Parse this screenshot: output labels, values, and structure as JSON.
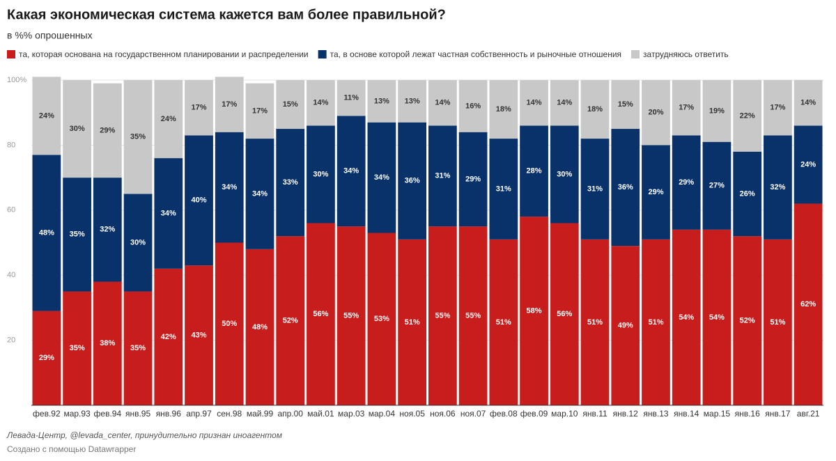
{
  "chart_data": {
    "type": "stacked-bar",
    "title": "Какая экономическая система кажется вам более правильной?",
    "subtitle": "в %% опрошенных",
    "source": "Левада-Центр, @levada_center, принудительно признан иноагентом",
    "credit": "Создано с помощью Datawrapper",
    "categories": [
      "фев.92",
      "мар.93",
      "фев.94",
      "янв.95",
      "янв.96",
      "апр.97",
      "сен.98",
      "май.99",
      "апр.00",
      "май.01",
      "мар.03",
      "мар.04",
      "ноя.05",
      "ноя.06",
      "ноя.07",
      "фев.08",
      "фев.09",
      "мар.10",
      "янв.11",
      "янв.12",
      "янв.13",
      "янв.14",
      "мар.15",
      "янв.16",
      "янв.17",
      "авг.21"
    ],
    "series": [
      {
        "name": "та, которая основана на государственном планировании и распределении",
        "color": "#c71e1d",
        "values": [
          29,
          35,
          38,
          35,
          42,
          43,
          50,
          48,
          52,
          56,
          55,
          53,
          51,
          55,
          55,
          51,
          58,
          56,
          51,
          49,
          51,
          54,
          54,
          52,
          51,
          62
        ],
        "value_labels": [
          "29%",
          "35%",
          "38%",
          "35%",
          "42%",
          "43%",
          "50%",
          "48%",
          "52%",
          "56%",
          "55%",
          "53%",
          "51%",
          "55%",
          "55%",
          "51%",
          "58%",
          "56%",
          "51%",
          "49%",
          "51%",
          "54%",
          "54%",
          "52%",
          "51%",
          "62%"
        ]
      },
      {
        "name": "та, в основе которой лежат частная собственность и рыночные отношения",
        "color": "#09326a",
        "values": [
          48,
          35,
          32,
          30,
          34,
          40,
          34,
          34,
          33,
          30,
          34,
          34,
          36,
          31,
          29,
          31,
          28,
          30,
          31,
          36,
          29,
          29,
          27,
          26,
          32,
          24
        ],
        "value_labels": [
          "48%",
          "35%",
          "32%",
          "30%",
          "34%",
          "40%",
          "34%",
          "34%",
          "33%",
          "30%",
          "34%",
          "34%",
          "36%",
          "31%",
          "29%",
          "31%",
          "28%",
          "30%",
          "31%",
          "36%",
          "29%",
          "29%",
          "27%",
          "26%",
          "32%",
          "24%"
        ]
      },
      {
        "name": "затрудняюсь ответить",
        "color": "#c8c8c8",
        "values": [
          24,
          30,
          29,
          35,
          24,
          17,
          17,
          17,
          15,
          14,
          11,
          13,
          13,
          14,
          16,
          18,
          14,
          14,
          18,
          15,
          20,
          17,
          19,
          22,
          17,
          14
        ],
        "value_labels": [
          "24%",
          "30%",
          "29%",
          "35%",
          "24%",
          "17%",
          "17%",
          "17%",
          "15%",
          "14%",
          "11%",
          "13%",
          "13%",
          "14%",
          "16%",
          "18%",
          "14%",
          "14%",
          "18%",
          "15%",
          "20%",
          "17%",
          "19%",
          "22%",
          "17%",
          "14%"
        ]
      }
    ],
    "ylim": [
      0,
      100
    ],
    "yticks": [
      20,
      40,
      60,
      80,
      {
        "value": 100,
        "label": "100%"
      }
    ],
    "grid": true
  }
}
